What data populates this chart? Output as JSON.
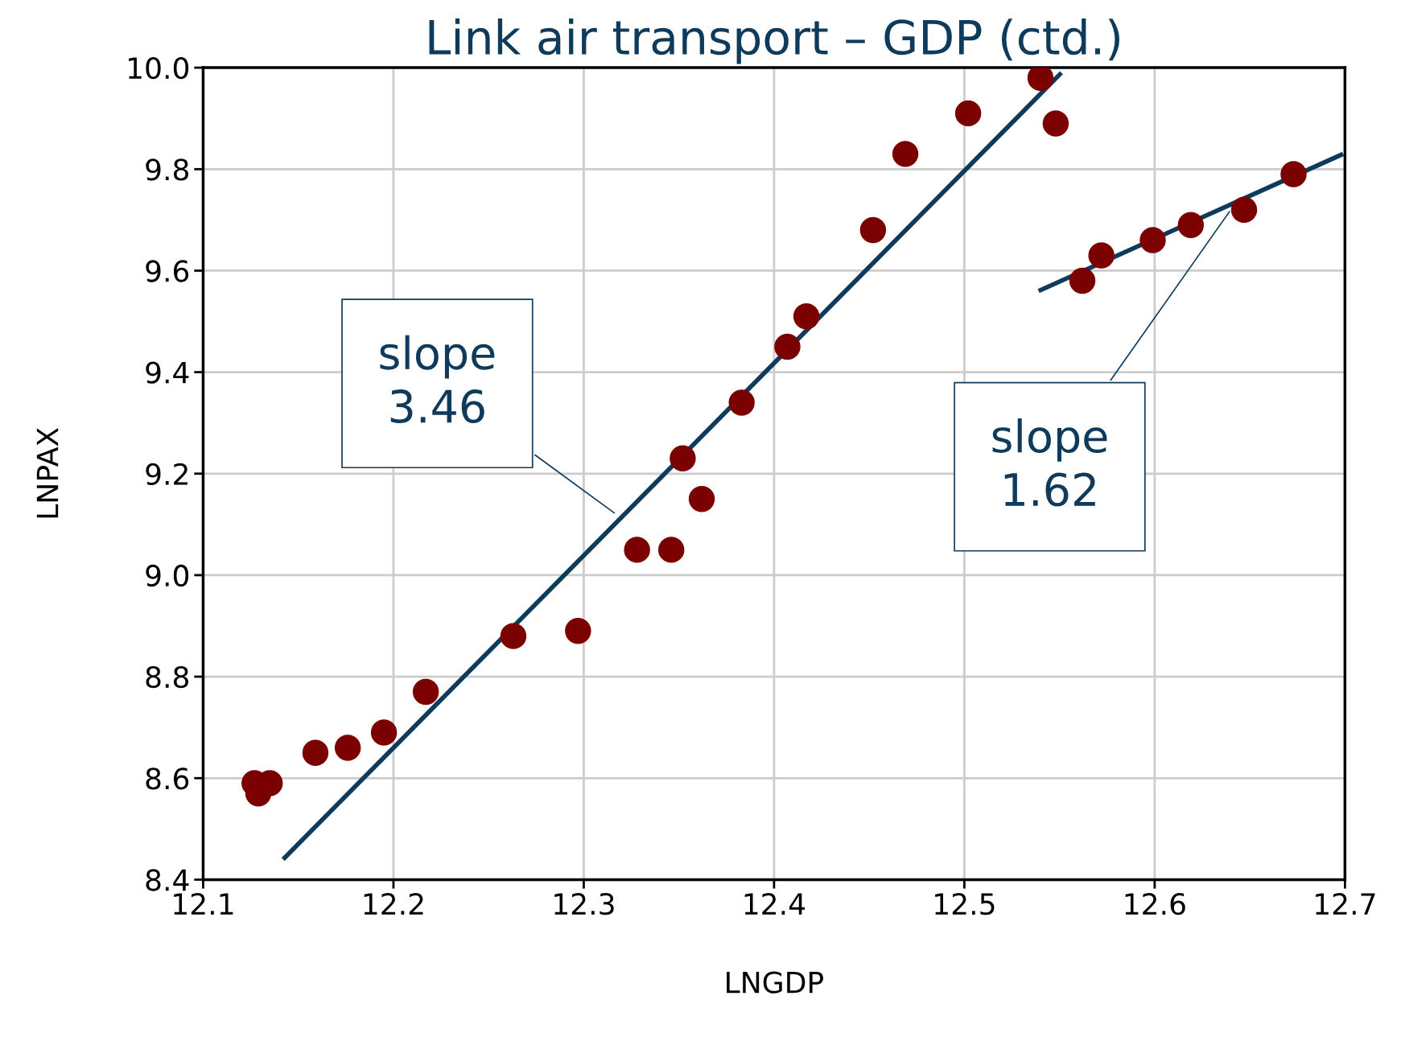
{
  "chart_data": {
    "type": "scatter",
    "title": "Link air transport – GDP (ctd.)",
    "xlabel": "LNGDP",
    "ylabel": "LNPAX",
    "xlim": [
      12.1,
      12.7
    ],
    "ylim": [
      8.4,
      10.0
    ],
    "xticks": [
      12.1,
      12.2,
      12.3,
      12.4,
      12.5,
      12.6,
      12.7
    ],
    "yticks": [
      8.4,
      8.6,
      8.8,
      {
        "value": 9,
        "label": "9.0"
      },
      9.2,
      9.4,
      9.6,
      9.8,
      {
        "value": 10,
        "label": "10.0"
      }
    ],
    "grid": true,
    "series": [
      {
        "marker": "circle",
        "color": "#7b0000",
        "x": [
          12.127,
          12.129,
          12.135,
          12.159,
          12.176,
          12.195,
          12.217,
          12.263,
          12.297,
          12.328,
          12.346,
          12.352,
          12.362,
          12.383,
          12.407,
          12.417,
          12.452,
          12.469,
          12.502,
          12.54,
          12.548,
          12.562,
          12.572,
          12.599,
          12.619,
          12.647,
          12.673
        ],
        "values": [
          8.59,
          8.57,
          8.59,
          8.65,
          8.66,
          8.69,
          8.77,
          8.88,
          8.89,
          9.05,
          9.05,
          9.23,
          9.15,
          9.34,
          9.45,
          9.51,
          9.68,
          9.83,
          9.91,
          9.98,
          9.89,
          9.58,
          9.63,
          9.66,
          9.69,
          9.72,
          9.79
        ]
      },
      {
        "type": "line",
        "color": "#0e3a5c",
        "x": [
          12.142,
          12.551
        ],
        "values": [
          8.44,
          9.99
        ]
      },
      {
        "type": "line",
        "color": "#0e3a5c",
        "x": [
          12.539,
          12.699
        ],
        "values": [
          9.56,
          9.83
        ]
      }
    ],
    "annotations": [
      {
        "text": "slope\n3.46",
        "x": 12.317,
        "y": 9.12
      },
      {
        "text": "slope\n1.62",
        "x": 12.64,
        "y": 9.72
      }
    ]
  }
}
